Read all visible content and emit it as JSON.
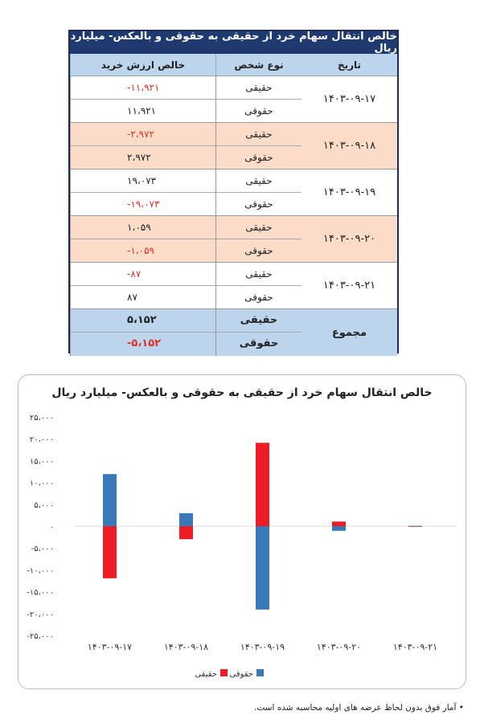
{
  "table": {
    "title": "خالص انتقال سهام خرد از حقیقی به حقوقی و بالعکس- میلیارد ریال",
    "headers": {
      "date": "تاریخ",
      "type": "نوع شخص",
      "value": "خالص ارزش خرید"
    },
    "rows": [
      {
        "date": "۱۴۰۳-۰۹-۱۷",
        "type1": "حقیقی",
        "value1": "-۱۱،۹۲۱",
        "type2": "حقوقی",
        "value2": "۱۱،۹۲۱"
      },
      {
        "date": "۱۴۰۳-۰۹-۱۸",
        "type1": "حقیقی",
        "value1": "-۲،۹۷۲",
        "type2": "حقوقی",
        "value2": "۲،۹۷۲"
      },
      {
        "date": "۱۴۰۳-۰۹-۱۹",
        "type1": "حقیقی",
        "value1": "۱۹،۰۷۳",
        "type2": "حقوقی",
        "value2": "-۱۹،۰۷۳"
      },
      {
        "date": "۱۴۰۳-۰۹-۲۰",
        "type1": "حقیقی",
        "value1": "۱،۰۵۹",
        "type2": "حقوقی",
        "value2": "-۱،۰۵۹"
      },
      {
        "date": "۱۴۰۳-۰۹-۲۱",
        "type1": "حقیقی",
        "value1": "-۸۷",
        "type2": "حقوقی",
        "value2": "۸۷"
      }
    ],
    "total": {
      "label": "مجموع",
      "type1": "حقیقی",
      "value1": "۵،۱۵۲",
      "type2": "حقوقی",
      "value2": "-۵،۱۵۲"
    }
  },
  "colors": {
    "real": "#ee1c25",
    "legal": "#3a79b8",
    "header_bg": "#1f3a6e",
    "neg_text": "#e0302a"
  },
  "chart_data": {
    "type": "bar",
    "title": "خالص انتقال سهام خرد از حقیقی به حقوقی و بالعکس- میلیارد ریال",
    "categories": [
      "۱۴۰۳-۰۹-۱۷",
      "۱۴۰۳-۰۹-۱۸",
      "۱۴۰۳-۰۹-۱۹",
      "۱۴۰۳-۰۹-۲۰",
      "۱۴۰۳-۰۹-۲۱"
    ],
    "series": [
      {
        "name": "حقیقی",
        "color": "#ee1c25",
        "values": [
          -11921,
          -2972,
          19073,
          1059,
          -87
        ]
      },
      {
        "name": "حقوقی",
        "color": "#3a79b8",
        "values": [
          11921,
          2972,
          -19073,
          -1059,
          87
        ]
      }
    ],
    "ylim": [
      -25000,
      25000
    ],
    "yticks": [
      25000,
      20000,
      15000,
      10000,
      5000,
      0,
      -5000,
      -10000,
      -15000,
      -20000,
      -25000
    ],
    "ytick_labels": [
      "۲۵،۰۰۰",
      "۲۰،۰۰۰",
      "۱۵،۰۰۰",
      "۱۰،۰۰۰",
      "۵،۰۰۰",
      "۰",
      "-۵،۰۰۰",
      "-۱۰،۰۰۰",
      "-۱۵،۰۰۰",
      "-۲۰،۰۰۰",
      "-۲۵،۰۰۰"
    ],
    "legend_position": "bottom",
    "grid": false
  },
  "footnote": "آمار فوق بدون لحاظ عرضه های اولیه محاسبه شده است."
}
